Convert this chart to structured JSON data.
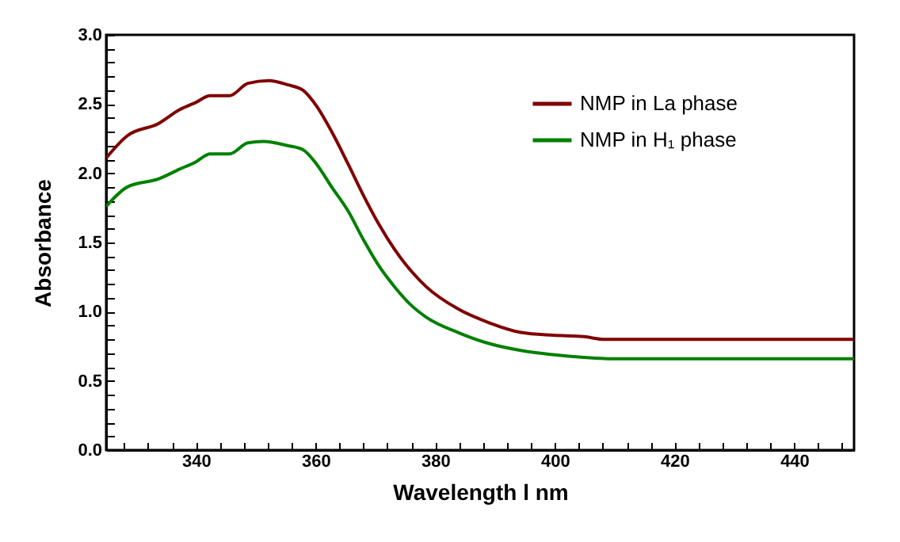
{
  "chart_data": {
    "type": "line",
    "xlabel": "Wavelength l nm",
    "ylabel": "Absorbance",
    "xlim": [
      325,
      450
    ],
    "ylim": [
      0,
      3
    ],
    "xticks": [
      {
        "value": 328,
        "label": null
      },
      {
        "value": 332,
        "label": null
      },
      {
        "value": 336,
        "label": null
      },
      340,
      {
        "value": 344,
        "label": null
      },
      {
        "value": 348,
        "label": null
      },
      {
        "value": 352,
        "label": null
      },
      {
        "value": 356,
        "label": null
      },
      360,
      {
        "value": 364,
        "label": null
      },
      {
        "value": 368,
        "label": null
      },
      {
        "value": 372,
        "label": null
      },
      {
        "value": 376,
        "label": null
      },
      380,
      {
        "value": 384,
        "label": null
      },
      {
        "value": 388,
        "label": null
      },
      {
        "value": 392,
        "label": null
      },
      {
        "value": 396,
        "label": null
      },
      400,
      {
        "value": 404,
        "label": null
      },
      {
        "value": 408,
        "label": null
      },
      {
        "value": 412,
        "label": null
      },
      {
        "value": 416,
        "label": null
      },
      420,
      {
        "value": 424,
        "label": null
      },
      {
        "value": 428,
        "label": null
      },
      {
        "value": 432,
        "label": null
      },
      {
        "value": 436,
        "label": null
      },
      440,
      {
        "value": 444,
        "label": null
      },
      {
        "value": 448,
        "label": null
      }
    ],
    "yticks": [
      {
        "value": 0,
        "label": "0.0"
      },
      {
        "value": 0.1,
        "label": null
      },
      {
        "value": 0.2,
        "label": null
      },
      {
        "value": 0.3,
        "label": null
      },
      {
        "value": 0.4,
        "label": null
      },
      {
        "value": 0.5,
        "label": "0.5"
      },
      {
        "value": 0.6,
        "label": null
      },
      {
        "value": 0.7,
        "label": null
      },
      {
        "value": 0.8,
        "label": null
      },
      {
        "value": 0.9,
        "label": null
      },
      {
        "value": 1,
        "label": "1.0"
      },
      {
        "value": 1.1,
        "label": null
      },
      {
        "value": 1.2,
        "label": null
      },
      {
        "value": 1.3,
        "label": null
      },
      {
        "value": 1.4,
        "label": null
      },
      {
        "value": 1.5,
        "label": "1.5"
      },
      {
        "value": 1.6,
        "label": null
      },
      {
        "value": 1.7,
        "label": null
      },
      {
        "value": 1.8,
        "label": null
      },
      {
        "value": 1.9,
        "label": null
      },
      {
        "value": 2,
        "label": "2.0"
      },
      {
        "value": 2.1,
        "label": null
      },
      {
        "value": 2.2,
        "label": null
      },
      {
        "value": 2.3,
        "label": null
      },
      {
        "value": 2.4,
        "label": null
      },
      {
        "value": 2.5,
        "label": "2.5"
      },
      {
        "value": 2.6,
        "label": null
      },
      {
        "value": 2.7,
        "label": null
      },
      {
        "value": 2.8,
        "label": null
      },
      {
        "value": 2.9,
        "label": null
      },
      {
        "value": 3,
        "label": "3.0"
      }
    ],
    "legend": "top right",
    "grid": false,
    "series": [
      {
        "name": "NMP in La phase",
        "color": "#800000",
        "x": [
          325,
          328.5,
          333.8,
          337.3,
          339.9,
          342.4,
          345.6,
          348.7,
          352.2,
          355.3,
          357.9,
          360.1,
          362.7,
          365.4,
          368,
          370.6,
          373.2,
          378.5,
          383.8,
          389,
          394.3,
          399.6,
          404.8,
          408.3,
          450
        ],
        "values": [
          2.11,
          2.27,
          2.36,
          2.46,
          2.51,
          2.56,
          2.56,
          2.65,
          2.67,
          2.64,
          2.6,
          2.49,
          2.3,
          2.07,
          1.84,
          1.63,
          1.45,
          1.18,
          1.02,
          0.92,
          0.85,
          0.83,
          0.82,
          0.8,
          0.8
        ]
      },
      {
        "name": "NMP in H₁ phase",
        "color": "#008000",
        "x": [
          325,
          328.5,
          333.8,
          337.3,
          339.9,
          342.4,
          345.6,
          348.7,
          351.3,
          355.3,
          357.9,
          360.1,
          362.7,
          365.4,
          368,
          370.6,
          373.2,
          375.9,
          378.5,
          383.8,
          389,
          394.3,
          399.6,
          404.8,
          410,
          450
        ],
        "values": [
          1.76,
          1.9,
          1.96,
          2.03,
          2.08,
          2.14,
          2.14,
          2.22,
          2.23,
          2.2,
          2.17,
          2.07,
          1.9,
          1.73,
          1.52,
          1.33,
          1.18,
          1.05,
          0.96,
          0.85,
          0.77,
          0.72,
          0.69,
          0.67,
          0.66,
          0.66
        ]
      }
    ]
  }
}
